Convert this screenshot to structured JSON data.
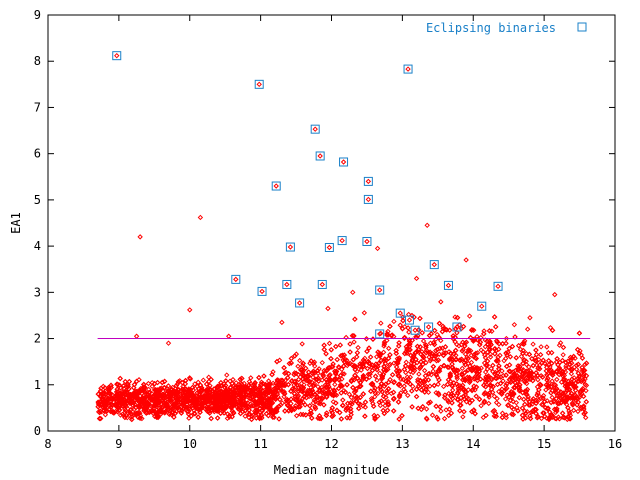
{
  "chart_data": {
    "type": "scatter",
    "title": "",
    "xlabel": "Median magnitude",
    "ylabel": "EA1",
    "xlim": [
      8,
      16
    ],
    "ylim": [
      0,
      9
    ],
    "x_ticks": [
      8,
      9,
      10,
      11,
      12,
      13,
      14,
      15,
      16
    ],
    "y_ticks": [
      0,
      1,
      2,
      3,
      4,
      5,
      6,
      7,
      8,
      9
    ],
    "grid": false,
    "legend_position": "top-right",
    "threshold_line": {
      "y": 2.0,
      "x_range": [
        8.7,
        15.65
      ],
      "color": "#c000c0"
    },
    "colors": {
      "field_stars": "#ff0000",
      "eclipsing_binaries": "#1a80c8"
    },
    "field_star_distribution": {
      "x_range": [
        8.7,
        15.6
      ],
      "note_density": "dense band rising from about 0.7 at magnitude 9-11 to about 1.5 at magnitude 13, tapering after 14",
      "outliers": [
        {
          "x": 9.3,
          "y": 4.2
        },
        {
          "x": 10.15,
          "y": 4.62
        },
        {
          "x": 13.35,
          "y": 4.45
        },
        {
          "x": 12.65,
          "y": 3.95
        },
        {
          "x": 13.9,
          "y": 3.7
        },
        {
          "x": 10.0,
          "y": 2.62
        },
        {
          "x": 10.55,
          "y": 2.05
        },
        {
          "x": 11.3,
          "y": 2.35
        },
        {
          "x": 11.95,
          "y": 2.65
        },
        {
          "x": 9.7,
          "y": 1.9
        },
        {
          "x": 9.25,
          "y": 2.05
        },
        {
          "x": 15.15,
          "y": 2.95
        },
        {
          "x": 14.8,
          "y": 2.45
        },
        {
          "x": 13.2,
          "y": 3.3
        },
        {
          "x": 12.3,
          "y": 3.0
        }
      ]
    },
    "series": [
      {
        "name": "Eclipsing binaries",
        "marker": "square",
        "points": [
          {
            "x": 8.97,
            "y": 8.12
          },
          {
            "x": 10.98,
            "y": 7.5
          },
          {
            "x": 13.08,
            "y": 7.83
          },
          {
            "x": 11.77,
            "y": 6.53
          },
          {
            "x": 11.84,
            "y": 5.95
          },
          {
            "x": 12.17,
            "y": 5.82
          },
          {
            "x": 11.22,
            "y": 5.3
          },
          {
            "x": 12.52,
            "y": 5.4
          },
          {
            "x": 12.52,
            "y": 5.01
          },
          {
            "x": 11.42,
            "y": 3.98
          },
          {
            "x": 11.97,
            "y": 3.97
          },
          {
            "x": 12.15,
            "y": 4.12
          },
          {
            "x": 12.5,
            "y": 4.1
          },
          {
            "x": 10.65,
            "y": 3.28
          },
          {
            "x": 11.02,
            "y": 3.02
          },
          {
            "x": 11.37,
            "y": 3.17
          },
          {
            "x": 11.87,
            "y": 3.17
          },
          {
            "x": 11.55,
            "y": 2.77
          },
          {
            "x": 13.45,
            "y": 3.6
          },
          {
            "x": 12.68,
            "y": 3.05
          },
          {
            "x": 13.65,
            "y": 3.15
          },
          {
            "x": 14.35,
            "y": 3.13
          },
          {
            "x": 14.12,
            "y": 2.7
          },
          {
            "x": 12.97,
            "y": 2.55
          },
          {
            "x": 13.18,
            "y": 2.18
          },
          {
            "x": 13.37,
            "y": 2.25
          },
          {
            "x": 13.77,
            "y": 2.25
          },
          {
            "x": 12.68,
            "y": 2.1
          },
          {
            "x": 13.1,
            "y": 2.4
          }
        ]
      }
    ]
  }
}
